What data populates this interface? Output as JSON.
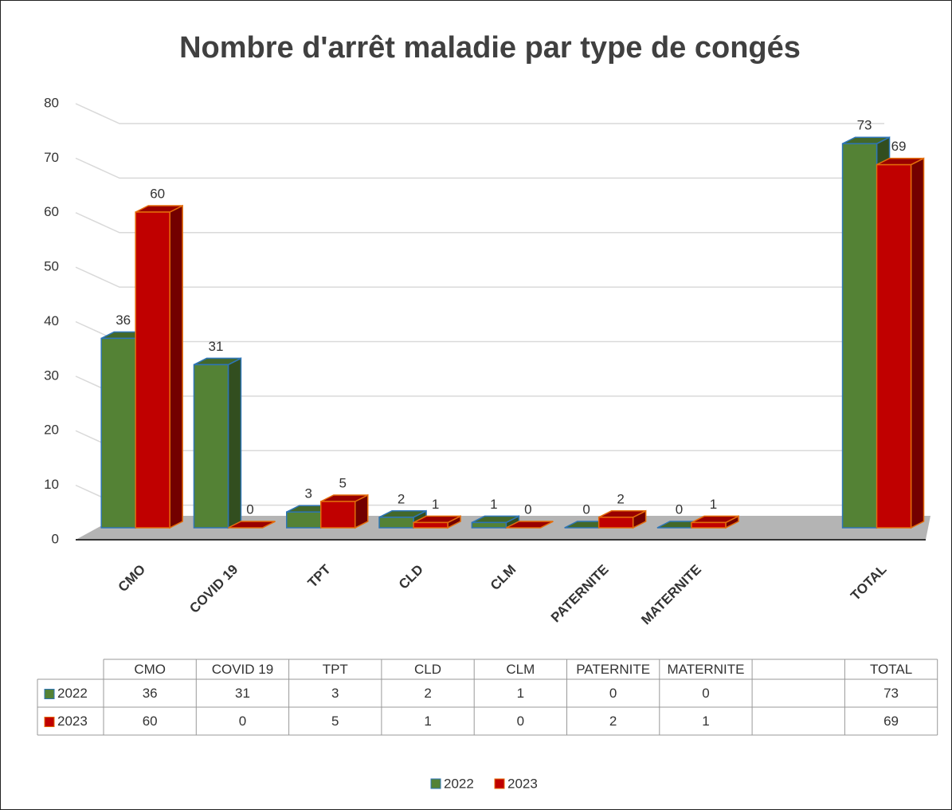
{
  "chart_data": {
    "type": "bar3d",
    "title": "Nombre d'arrêt maladie par type de congés",
    "categories": [
      "CMO",
      "COVID 19",
      "TPT",
      "CLD",
      "CLM",
      "PATERNITE",
      "MATERNITE",
      null,
      "TOTAL"
    ],
    "series": [
      {
        "name": "2022",
        "color": "#548235",
        "values": [
          36,
          31,
          3,
          2,
          1,
          0,
          0,
          null,
          73
        ]
      },
      {
        "name": "2023",
        "color": "#c00000",
        "values": [
          60,
          0,
          5,
          1,
          0,
          2,
          1,
          null,
          69
        ]
      }
    ],
    "ylim": [
      0,
      80
    ],
    "yticks": [
      0,
      10,
      20,
      30,
      40,
      50,
      60,
      70,
      80
    ],
    "grid": true,
    "legend": "bottom",
    "data_table": true
  }
}
